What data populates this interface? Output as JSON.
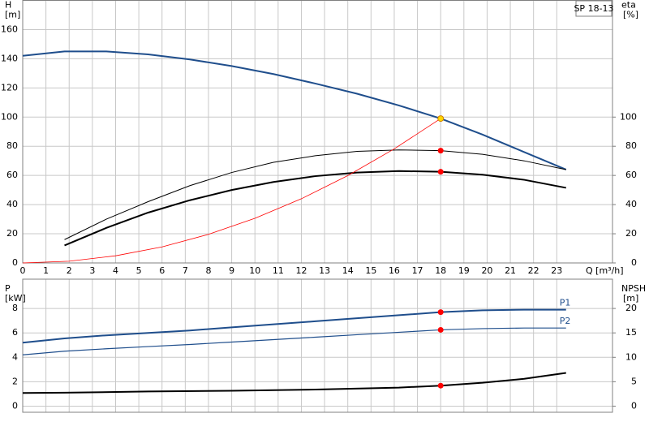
{
  "chart_data": [
    {
      "type": "line",
      "title": "SP 18-13",
      "ylabel": "H",
      "yunit": "[m]",
      "y2label": "eta",
      "y2unit": "[%]",
      "xlabel": "Q [m³/h]",
      "xlim": [
        0,
        25.4
      ],
      "xticks": [
        0,
        1,
        2,
        3,
        4,
        5,
        6,
        7,
        8,
        9,
        10,
        11,
        12,
        13,
        14,
        15,
        16,
        17,
        18,
        19,
        20,
        21,
        22,
        23
      ],
      "ylim": [
        0,
        180
      ],
      "yticks": [
        0,
        20,
        40,
        60,
        80,
        100,
        120,
        140,
        160
      ],
      "y2lim": [
        0,
        180
      ],
      "y2ticks": [
        0,
        20,
        40,
        60,
        80,
        100
      ],
      "grid": true,
      "series": [
        {
          "color": "#1f4e8c",
          "width": 2,
          "x": [
            0,
            1.8,
            3.6,
            5.4,
            7.2,
            9,
            10.8,
            12.6,
            14.4,
            16.2,
            18,
            19.8,
            21.6,
            23.4
          ],
          "values": [
            142,
            145,
            145,
            143,
            139.5,
            135,
            129.5,
            123,
            116,
            108,
            99,
            88,
            76,
            64
          ]
        },
        {
          "color": "#000000",
          "width": 1,
          "axis": "y2",
          "x": [
            1.8,
            3.6,
            5.4,
            7.2,
            9,
            10.8,
            12.6,
            14.4,
            16.2,
            18,
            19.8,
            21.6,
            23.4
          ],
          "values": [
            16,
            30,
            42,
            53,
            62,
            69,
            73.5,
            76.5,
            77.5,
            77,
            74.5,
            70,
            64
          ]
        },
        {
          "color": "#000000",
          "width": 2,
          "axis": "y2",
          "x": [
            1.8,
            3.6,
            5.4,
            7.2,
            9,
            10.8,
            12.6,
            14.4,
            16.2,
            18,
            19.8,
            21.6,
            23.4
          ],
          "values": [
            12,
            24,
            34.5,
            43,
            50,
            55.5,
            59.5,
            62,
            63,
            62.5,
            60.5,
            57,
            51.5
          ]
        },
        {
          "color": "#ff0000",
          "width": 0.8,
          "x": [
            0,
            2,
            4,
            6,
            8,
            10,
            12,
            14,
            16,
            18
          ],
          "values": [
            0,
            1.2,
            4.9,
            11,
            19.6,
            30.6,
            44,
            59.9,
            78.2,
            99
          ]
        }
      ],
      "points": [
        {
          "x": 18,
          "y": 99,
          "color": "#ffd700"
        },
        {
          "x": 18,
          "y": 77,
          "color": "#ff0000",
          "axis": "y2"
        },
        {
          "x": 18,
          "y": 62.5,
          "color": "#ff0000",
          "axis": "y2"
        }
      ]
    },
    {
      "type": "line",
      "ylabel": "P",
      "yunit": "[kW]",
      "y2label": "NPSH",
      "y2unit": "[m]",
      "xlim": [
        0,
        25.4
      ],
      "ylim": [
        -0.5,
        10.4
      ],
      "yticks": [
        0,
        2,
        4,
        6,
        8
      ],
      "y2lim": [
        -1.25,
        26
      ],
      "y2ticks": [
        0,
        5,
        10,
        15,
        20
      ],
      "grid": true,
      "series": [
        {
          "name": "P1",
          "color": "#1f4e8c",
          "width": 2,
          "x": [
            0,
            1.8,
            3.6,
            5.4,
            7.2,
            9,
            10.8,
            12.6,
            14.4,
            16.2,
            18,
            19.8,
            21.6,
            23.4
          ],
          "values": [
            5.2,
            5.55,
            5.8,
            6.0,
            6.2,
            6.45,
            6.7,
            6.95,
            7.2,
            7.45,
            7.7,
            7.85,
            7.9,
            7.9
          ]
        },
        {
          "name": "P2",
          "color": "#1f4e8c",
          "width": 1.2,
          "x": [
            0,
            1.8,
            3.6,
            5.4,
            7.2,
            9,
            10.8,
            12.6,
            14.4,
            16.2,
            18,
            19.8,
            21.6,
            23.4
          ],
          "values": [
            4.2,
            4.5,
            4.7,
            4.88,
            5.05,
            5.25,
            5.45,
            5.65,
            5.85,
            6.05,
            6.25,
            6.35,
            6.4,
            6.4
          ]
        },
        {
          "color": "#000000",
          "width": 2,
          "axis": "y2",
          "x": [
            0,
            1.8,
            5.4,
            9,
            12.6,
            16.2,
            18,
            19.8,
            21.6,
            23.4
          ],
          "values": [
            2.7,
            2.75,
            3.0,
            3.15,
            3.4,
            3.8,
            4.2,
            4.8,
            5.6,
            6.8
          ]
        }
      ],
      "points": [
        {
          "x": 18,
          "y": 7.7,
          "color": "#ff0000"
        },
        {
          "x": 18,
          "y": 6.25,
          "color": "#ff0000"
        },
        {
          "x": 18,
          "y": 4.2,
          "color": "#ff0000",
          "axis": "y2"
        }
      ]
    }
  ]
}
